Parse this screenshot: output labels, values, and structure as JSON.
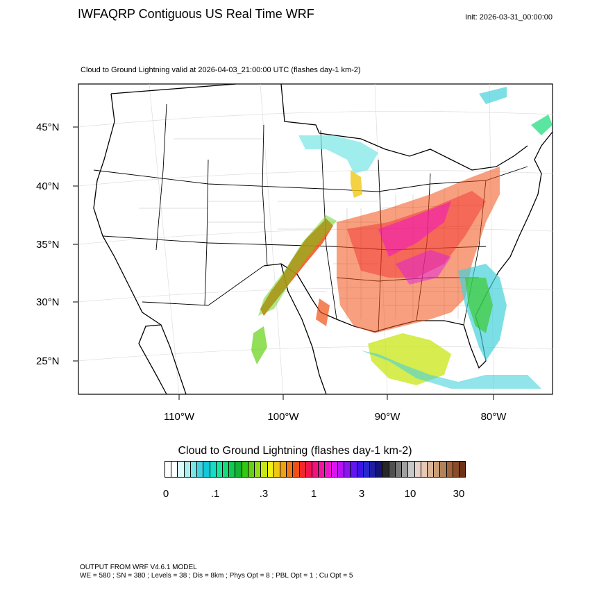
{
  "header": {
    "title": "IWFAQRP Contiguous US Real Time WRF",
    "init": "Init: 2026-03-31_00:00:00"
  },
  "map": {
    "subtitle": "Cloud to Ground Lightning valid at 2026-04-03_21:00:00 UTC   (flashes day-1 km-2)",
    "lat_labels": [
      "45°N",
      "40°N",
      "35°N",
      "30°N",
      "25°N"
    ],
    "lon_labels": [
      "110°W",
      "100°W",
      "90°W",
      "80°W"
    ]
  },
  "colorbar": {
    "title": "Cloud to Ground Lightning  (flashes day-1 km-2)",
    "tick_labels": [
      "0",
      ".1",
      ".3",
      "1",
      "3",
      "10",
      "30"
    ],
    "colors": [
      "#ffffff",
      "#ffffff",
      "#dcfafa",
      "#a8f0f0",
      "#78e6e6",
      "#46d2dc",
      "#14c8dc",
      "#14dcc8",
      "#14e6a0",
      "#14dc78",
      "#14c850",
      "#14b432",
      "#32c814",
      "#64d214",
      "#96dc14",
      "#c8e614",
      "#f0f014",
      "#f0c814",
      "#f0a014",
      "#f07814",
      "#f05014",
      "#f02828",
      "#f01450",
      "#f01478",
      "#f014a0",
      "#f014c8",
      "#dc14f0",
      "#b414f0",
      "#8c14f0",
      "#6414f0",
      "#3c14e6",
      "#2828c8",
      "#1e1ea0",
      "#141478",
      "#282828",
      "#505050",
      "#787878",
      "#a0a0a0",
      "#c8c8c8",
      "#e6d2c8",
      "#e6c8b4",
      "#dcb496",
      "#c8a078",
      "#b4825a",
      "#a0643c",
      "#8c4b28",
      "#6e3214"
    ]
  },
  "footer": {
    "line1": "OUTPUT FROM WRF V4.6.1 MODEL",
    "line2": "WE = 580 ; SN = 380 ; Levels = 38 ; Dis = 8km ; Phys Opt = 8 ; PBL Opt = 1 ; Cu Opt = 5"
  }
}
